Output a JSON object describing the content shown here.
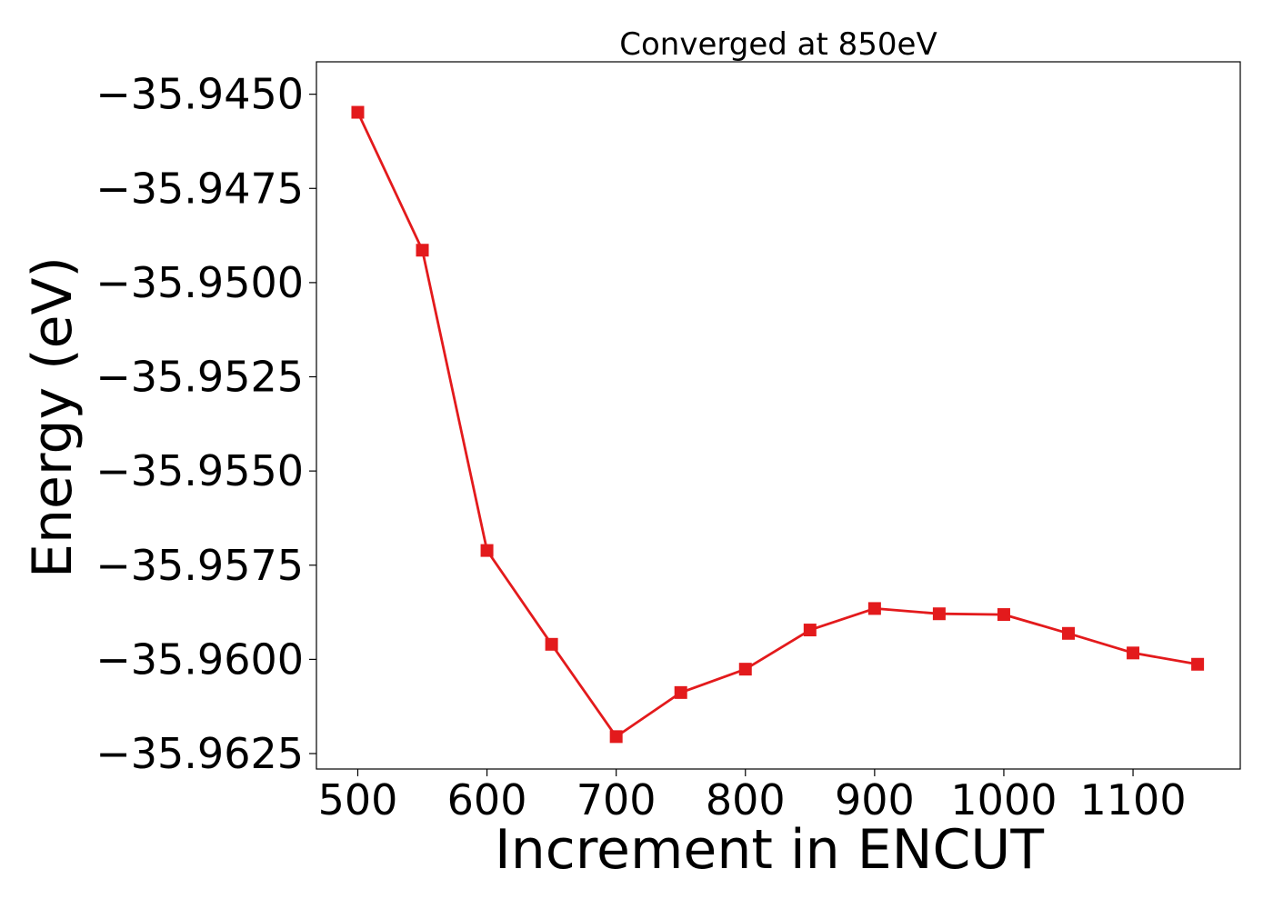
{
  "chart_data": {
    "type": "line",
    "title": "Converged at 850eV",
    "xlabel": "Increment in ENCUT",
    "ylabel": "Energy (eV)",
    "xlim": [
      468,
      1183
    ],
    "ylim": [
      -35.96291,
      -35.94414
    ],
    "x_ticks": [
      500,
      600,
      700,
      800,
      900,
      1000,
      1100
    ],
    "x_tick_labels": [
      "500",
      "600",
      "700",
      "800",
      "900",
      "1000",
      "1100"
    ],
    "y_ticks": [
      -35.945,
      -35.9475,
      -35.95,
      -35.9525,
      -35.955,
      -35.9575,
      -35.96,
      -35.9625
    ],
    "y_tick_labels": [
      "−35.9450",
      "−35.9475",
      "−35.9500",
      "−35.9525",
      "−35.9550",
      "−35.9575",
      "−35.9600",
      "−35.9625"
    ],
    "grid": false,
    "series": [
      {
        "color": "#e31a1c",
        "marker": "square",
        "x": [
          500,
          550,
          600,
          650,
          700,
          750,
          800,
          850,
          900,
          950,
          1000,
          1050,
          1100,
          1150
        ],
        "y": [
          -35.94548,
          -35.94914,
          -35.95711,
          -35.9596,
          -35.96205,
          -35.96088,
          -35.96026,
          -35.95922,
          -35.95865,
          -35.95879,
          -35.95881,
          -35.95931,
          -35.95983,
          -35.96013
        ]
      }
    ]
  }
}
